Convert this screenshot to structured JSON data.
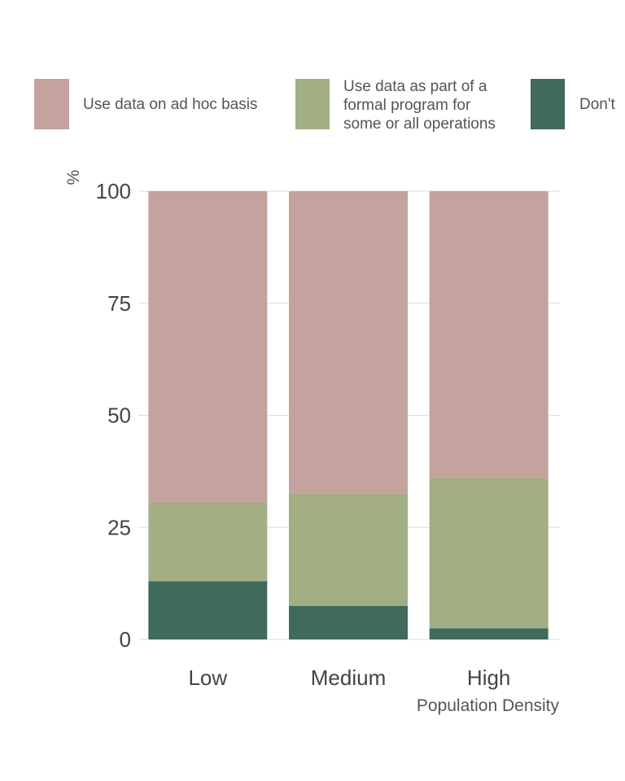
{
  "chart_data": {
    "type": "bar",
    "stacked": true,
    "categories": [
      "Low",
      "Medium",
      "High"
    ],
    "series": [
      {
        "name": "Don't",
        "color": "#406a5a",
        "values": [
          13,
          7.5,
          2.5
        ]
      },
      {
        "name": "Use data as part of a formal program for some or all operations",
        "color": "#a2ae84",
        "values": [
          17.5,
          25,
          33.5
        ]
      },
      {
        "name": "Use data on ad hoc basis",
        "color": "#c4a29d",
        "values": [
          69.5,
          67.5,
          64
        ]
      }
    ],
    "title": "",
    "xlabel": "Population Density",
    "ylabel": "%",
    "ylim": [
      0,
      100
    ],
    "yticks": [
      0,
      25,
      50,
      75,
      100
    ],
    "grid": true,
    "legend_position": "top"
  },
  "legend": {
    "items": [
      {
        "label_lines": [
          "Use data on ad hoc basis"
        ],
        "color": "#c4a29d"
      },
      {
        "label_lines": [
          "Use data as part of a",
          "formal program for",
          "some or all operations"
        ],
        "color": "#a2ae84"
      },
      {
        "label_lines": [
          "Don't"
        ],
        "color": "#406a5a"
      }
    ]
  }
}
